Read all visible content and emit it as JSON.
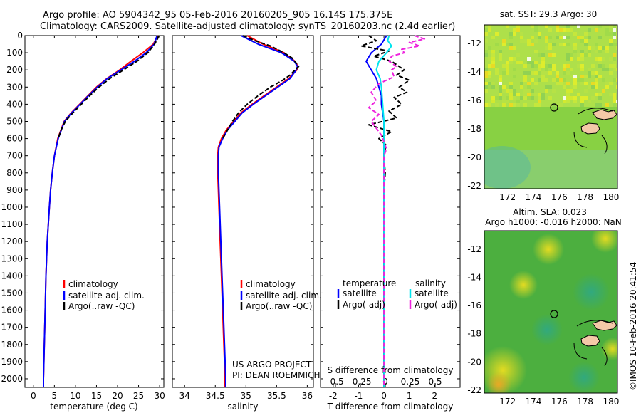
{
  "header": {
    "title_line1": "Argo profile: AO 5904342_95 05-Feb-2016 20160205_905 16.14S 175.375E",
    "title_line2": "Climatology: CARS2009. Satellite-adjusted climatology: synTS_20160203.nc (2.4d earlier)"
  },
  "credits": {
    "project": "US ARGO PROJECT",
    "pi": "PI: DEAN ROEMMICH",
    "stamp": "©IMOS 10-Feb-2016 20:41:54"
  },
  "map_top": {
    "title": "sat. SST: 29.3 Argo: 30"
  },
  "map_bottom": {
    "title1": "Altim. SLA: 0.023",
    "title2": "Argo h1000: -0.016 h2000: NaN"
  },
  "colors": {
    "climatology": "#ff0000",
    "satellite": "#0000ff",
    "argo": "#000000",
    "sal_sat": "#00e5ee",
    "sal_argo": "#ee22dd"
  },
  "chart_data": [
    {
      "type": "line",
      "xlabel": "temperature (deg C)",
      "xlim": [
        -2,
        31
      ],
      "xticks": [
        0,
        5,
        10,
        15,
        20,
        25,
        30
      ],
      "ylim": [
        2050,
        0
      ],
      "yticks": [
        0,
        100,
        200,
        300,
        400,
        500,
        600,
        700,
        800,
        900,
        1000,
        1100,
        1200,
        1300,
        1400,
        1500,
        1600,
        1700,
        1800,
        1900,
        2000
      ],
      "legend": [
        "climatology",
        "satellite-adj. clim.",
        "Argo(..raw -QC)"
      ],
      "series": [
        {
          "name": "climatology",
          "depth": [
            0,
            50,
            100,
            150,
            200,
            250,
            300,
            350,
            400,
            450,
            500,
            600,
            700,
            800,
            900,
            1000,
            1200,
            1400,
            1600,
            1800,
            2000,
            2050
          ],
          "values": [
            29.6,
            28.5,
            26.0,
            23.2,
            20.5,
            17.5,
            15.0,
            13.0,
            11.0,
            9.0,
            7.3,
            5.8,
            5.0,
            4.5,
            4.1,
            3.8,
            3.3,
            3.0,
            2.8,
            2.6,
            2.4,
            2.4
          ]
        },
        {
          "name": "satellite-adj. clim.",
          "depth": [
            0,
            50,
            100,
            150,
            200,
            250,
            300,
            350,
            400,
            450,
            500,
            600,
            700,
            800,
            900,
            1000,
            1200,
            1400,
            1600,
            1800,
            2000,
            2050
          ],
          "values": [
            29.4,
            28.7,
            26.8,
            24.0,
            20.8,
            17.6,
            15.2,
            13.1,
            11.1,
            9.1,
            7.4,
            5.9,
            5.0,
            4.5,
            4.1,
            3.8,
            3.3,
            3.0,
            2.8,
            2.6,
            2.4,
            2.4
          ]
        },
        {
          "name": "Argo(..raw -QC)",
          "depth": [
            0,
            20,
            50,
            100,
            150,
            200,
            250,
            300,
            350,
            400,
            450,
            480,
            500,
            550,
            600
          ],
          "values": [
            29.8,
            29.5,
            28.8,
            27.2,
            24.6,
            21.4,
            18.2,
            15.6,
            13.4,
            11.4,
            9.4,
            8.3,
            7.6,
            6.6,
            5.9
          ]
        }
      ]
    },
    {
      "type": "line",
      "xlabel": "salinity",
      "xlim": [
        33.8,
        36.1
      ],
      "xticks": [
        34,
        34.5,
        35,
        35.5,
        36
      ],
      "ylim": [
        2050,
        0
      ],
      "legend": [
        "climatology",
        "satellite-adj. clim.",
        "Argo(..raw -QC)"
      ],
      "series": [
        {
          "name": "climatology",
          "depth": [
            0,
            50,
            100,
            150,
            180,
            200,
            250,
            300,
            350,
            400,
            450,
            500,
            550,
            600,
            650,
            700,
            800,
            900,
            1000,
            1200,
            1400,
            1600,
            1800,
            2000,
            2050
          ],
          "values": [
            35.02,
            35.28,
            35.62,
            35.8,
            35.85,
            35.83,
            35.7,
            35.5,
            35.3,
            35.1,
            34.92,
            34.8,
            34.68,
            34.6,
            34.55,
            34.54,
            34.54,
            34.55,
            34.56,
            34.58,
            34.6,
            34.62,
            34.64,
            34.66,
            34.66
          ]
        },
        {
          "name": "satellite-adj. clim.",
          "depth": [
            0,
            50,
            100,
            150,
            180,
            200,
            250,
            300,
            350,
            400,
            450,
            500,
            550,
            600,
            650,
            700,
            800,
            900,
            1000,
            1200,
            1400,
            1600,
            1800,
            2000,
            2050
          ],
          "values": [
            34.92,
            35.2,
            35.58,
            35.79,
            35.84,
            35.82,
            35.72,
            35.52,
            35.32,
            35.12,
            34.94,
            34.82,
            34.7,
            34.62,
            34.56,
            34.55,
            34.55,
            34.56,
            34.57,
            34.59,
            34.61,
            34.63,
            34.65,
            34.67,
            34.67
          ]
        },
        {
          "name": "Argo(..raw -QC)",
          "depth": [
            0,
            30,
            60,
            100,
            130,
            160,
            180,
            200,
            230,
            260,
            300,
            350,
            400,
            450,
            500,
            550,
            600
          ],
          "values": [
            34.95,
            35.15,
            35.4,
            35.62,
            35.75,
            35.82,
            35.86,
            35.8,
            35.72,
            35.6,
            35.4,
            35.2,
            35.02,
            34.88,
            34.78,
            34.7,
            34.62
          ]
        }
      ]
    },
    {
      "type": "line",
      "xlabel": "T difference from climatology",
      "xlabel_top": "S difference from climatology",
      "xlim": [
        -2.5,
        3.0
      ],
      "xticks": [
        -2,
        -1,
        0,
        1,
        2
      ],
      "xticks_top": [
        -0.5,
        -0.25,
        0,
        0.25,
        0.5
      ],
      "xtick_labels_top": [
        "-0.5",
        "-0.25",
        "0",
        "0.25",
        "0.5"
      ],
      "ylim": [
        2050,
        0
      ],
      "legend_headers": [
        "temperature",
        "salinity"
      ],
      "legend": [
        "satellite",
        "Argo(-adj)",
        "satellite",
        "Argo(-adj)"
      ],
      "series": [
        {
          "name": "satellite",
          "depth": [
            0,
            50,
            100,
            150,
            200,
            250,
            300,
            350,
            400,
            450,
            500,
            600,
            800,
            1000,
            1500,
            2000,
            2050
          ],
          "values": [
            0.1,
            -0.1,
            -0.5,
            -0.7,
            -0.5,
            -0.3,
            -0.2,
            -0.1,
            -0.1,
            -0.05,
            0,
            0,
            0,
            0,
            0,
            0,
            0
          ]
        },
        {
          "name": "Argo(-adj)",
          "depth": [
            0,
            30,
            60,
            90,
            120,
            150,
            180,
            200,
            230,
            260,
            300,
            330,
            360,
            400,
            440,
            480,
            520,
            560,
            600,
            640,
            680,
            720,
            800,
            900,
            1000,
            1200,
            1500,
            1800,
            2050
          ],
          "values": [
            -0.6,
            -0.3,
            -0.9,
            0.2,
            -0.4,
            0.3,
            0.6,
            0.8,
            0.5,
            1.0,
            0.6,
            0.9,
            0.4,
            0.7,
            0.2,
            0.5,
            -0.6,
            0.3,
            -0.2,
            0.1,
            0,
            0,
            0.05,
            0,
            0.02,
            0,
            0,
            0,
            0
          ]
        },
        {
          "name": "sal satellite",
          "depth": [
            0,
            30,
            60,
            100,
            150,
            200,
            250,
            300,
            400,
            500,
            600,
            800,
            1000,
            1500,
            2000,
            2050
          ],
          "values": [
            0.2,
            0.15,
            0.3,
            0.1,
            -0.2,
            -0.3,
            -0.15,
            -0.1,
            -0.05,
            0,
            0,
            0,
            0,
            0,
            0,
            0
          ]
        },
        {
          "name": "sal Argo(-adj)",
          "depth": [
            0,
            20,
            40,
            60,
            80,
            100,
            120,
            150,
            180,
            200,
            240,
            280,
            330,
            380,
            420,
            460,
            500,
            540,
            580,
            620,
            660,
            700,
            800,
            1000,
            1500,
            2050
          ],
          "values": [
            1.2,
            1.6,
            1.0,
            1.4,
            0.7,
            0.8,
            0.3,
            0.2,
            0.5,
            0.3,
            0.4,
            -0.2,
            -0.5,
            -0.3,
            -0.6,
            -0.2,
            -0.5,
            -0.3,
            -0.1,
            0,
            0.1,
            0,
            0,
            0,
            0,
            0
          ]
        }
      ]
    },
    {
      "type": "heatmap",
      "title": "sat. SST: 29.3 Argo: 30",
      "xticks": [
        172,
        174,
        176,
        178,
        180
      ],
      "yticks": [
        -12,
        -14,
        -16,
        -18,
        -20,
        -22
      ],
      "xlim": [
        170.2,
        180.5
      ],
      "ylim": [
        -22.2,
        -10.7
      ],
      "argo_position": {
        "lon": 175.375,
        "lat": -16.14
      }
    },
    {
      "type": "heatmap",
      "title": "Altim. SLA: 0.023",
      "subtitle": "Argo h1000: -0.016 h2000: NaN",
      "xticks": [
        172,
        174,
        176,
        178,
        180
      ],
      "yticks": [
        -12,
        -14,
        -16,
        -18,
        -20,
        -22
      ],
      "xlim": [
        170.2,
        180.5
      ],
      "ylim": [
        -22.2,
        -10.7
      ],
      "argo_position": {
        "lon": 175.375,
        "lat": -16.14
      }
    }
  ]
}
